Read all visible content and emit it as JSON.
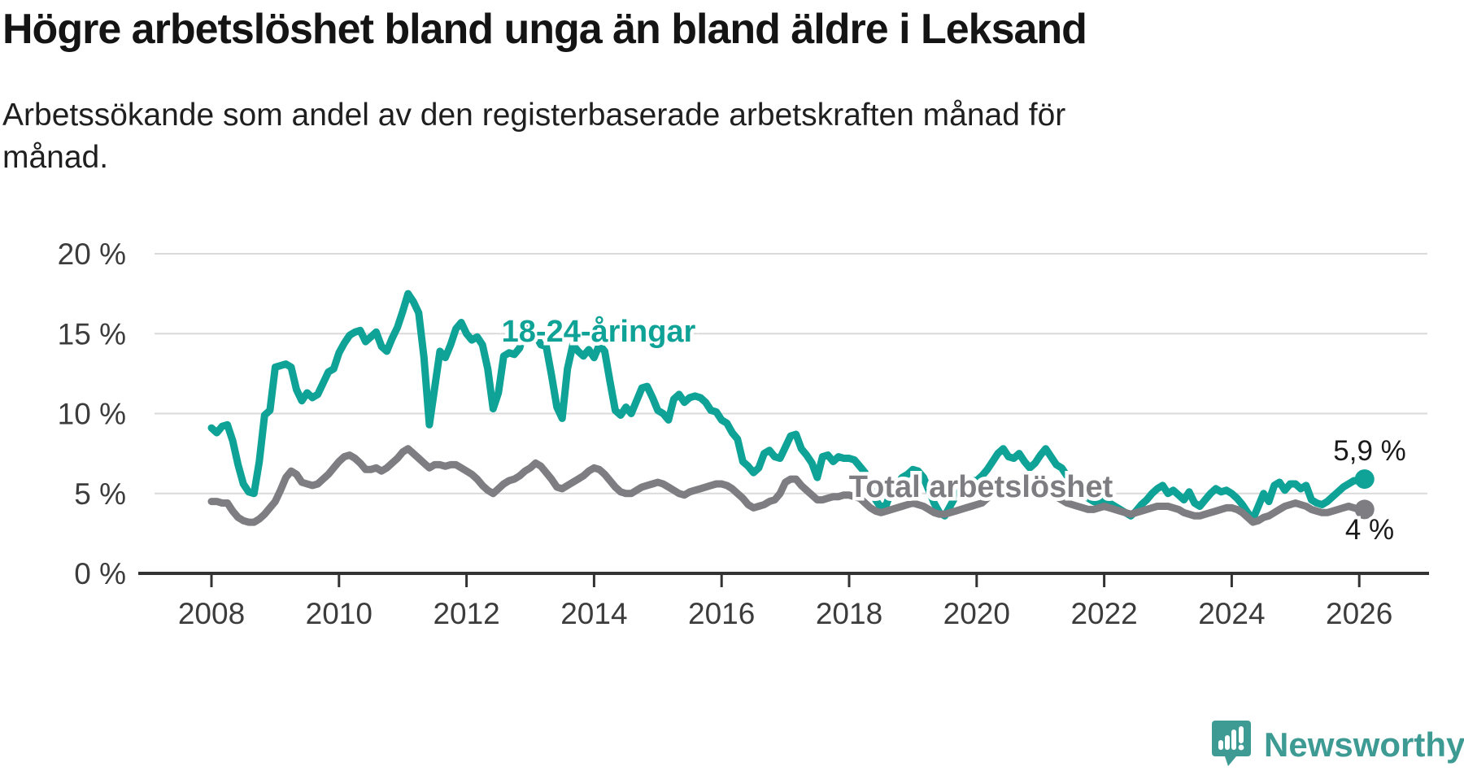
{
  "title": "Högre arbetslöshet bland unga än bland äldre i Leksand",
  "subtitle_line1": "Arbetssökande som andel av den registerbaserade arbetskraften månad för",
  "subtitle_line2": "månad.",
  "branding": {
    "logo_text": "Newsworthy",
    "logo_color": "#3e9b94",
    "logo_icon": "newsworthy-speech-bubble-chart-icon"
  },
  "chart_data": {
    "type": "line",
    "unit": "%",
    "frequency": "monthly",
    "start_year": 2008,
    "start_month": 1,
    "xlabel": "",
    "ylabel": "",
    "ylim": [
      0,
      20.5
    ],
    "grid": true,
    "x_ticks": [
      2008,
      2010,
      2012,
      2014,
      2016,
      2018,
      2020,
      2022,
      2024,
      2026
    ],
    "y_ticks": [
      0,
      5,
      10,
      15,
      20
    ],
    "y_tick_labels": [
      "0 %",
      "5 %",
      "10 %",
      "15 %",
      "20 %"
    ],
    "axis_color": "#333333",
    "grid_color": "#dadada",
    "series": [
      {
        "name": "18-24-åringar",
        "color": "#0fa296",
        "end_label": "5,9 %",
        "end_value": 5.9,
        "values": [
          9.1,
          8.8,
          9.2,
          9.3,
          8.3,
          6.8,
          5.6,
          5.1,
          5.0,
          7.0,
          9.9,
          10.2,
          12.9,
          13.0,
          13.1,
          12.9,
          11.5,
          10.8,
          11.3,
          11.0,
          11.2,
          11.9,
          12.6,
          12.8,
          13.8,
          14.4,
          14.9,
          15.1,
          15.2,
          14.5,
          14.8,
          15.1,
          14.2,
          13.9,
          14.7,
          15.4,
          16.4,
          17.5,
          17.0,
          16.3,
          13.5,
          9.3,
          11.6,
          13.9,
          13.5,
          14.3,
          15.3,
          15.7,
          15.0,
          14.6,
          14.8,
          14.3,
          12.8,
          10.3,
          11.3,
          13.6,
          13.8,
          13.7,
          14.1,
          15.3,
          15.4,
          14.9,
          14.3,
          14.2,
          12.4,
          10.4,
          9.7,
          12.8,
          14.3,
          13.9,
          13.6,
          14.0,
          13.5,
          14.3,
          13.9,
          12.0,
          10.2,
          9.9,
          10.4,
          10.0,
          10.8,
          11.6,
          11.7,
          11.0,
          10.2,
          10.0,
          9.6,
          10.9,
          11.2,
          10.7,
          11.0,
          11.1,
          11.0,
          10.7,
          10.2,
          10.1,
          9.6,
          9.4,
          8.8,
          8.4,
          7.0,
          6.7,
          6.3,
          6.6,
          7.5,
          7.7,
          7.3,
          7.2,
          7.9,
          8.6,
          8.7,
          7.8,
          7.4,
          6.9,
          6.0,
          7.3,
          7.4,
          7.0,
          7.3,
          7.2,
          7.2,
          7.1,
          6.7,
          6.3,
          5.5,
          4.6,
          4.1,
          4.3,
          5.2,
          5.6,
          6.0,
          6.2,
          6.5,
          6.4,
          6.0,
          5.2,
          4.4,
          3.8,
          3.6,
          4.2,
          4.8,
          5.2,
          5.6,
          5.8,
          5.8,
          6.1,
          6.5,
          7.0,
          7.5,
          7.8,
          7.3,
          7.2,
          7.5,
          7.0,
          6.6,
          6.9,
          7.4,
          7.8,
          7.3,
          6.8,
          6.6,
          6.1,
          5.6,
          5.2,
          5.0,
          4.7,
          4.5,
          4.4,
          4.6,
          4.4,
          4.2,
          4.0,
          3.8,
          3.6,
          3.9,
          4.3,
          4.6,
          5.0,
          5.3,
          5.5,
          5.0,
          5.2,
          4.9,
          4.6,
          5.1,
          4.4,
          4.2,
          4.6,
          5.0,
          5.3,
          5.1,
          5.2,
          5.0,
          4.7,
          4.3,
          3.8,
          3.4,
          4.2,
          5.0,
          4.5,
          5.5,
          5.7,
          5.2,
          5.6,
          5.6,
          5.3,
          5.5,
          4.6,
          4.4,
          4.3,
          4.5,
          4.8,
          5.1,
          5.4,
          5.6,
          5.8,
          5.8,
          5.9
        ]
      },
      {
        "name": "Total arbetslöshet",
        "color": "#7d7d82",
        "end_label": "4 %",
        "end_value": 4.0,
        "values": [
          4.5,
          4.5,
          4.4,
          4.4,
          3.9,
          3.5,
          3.3,
          3.2,
          3.2,
          3.4,
          3.7,
          4.1,
          4.5,
          5.2,
          6.0,
          6.4,
          6.2,
          5.7,
          5.6,
          5.5,
          5.6,
          5.9,
          6.2,
          6.6,
          7.0,
          7.3,
          7.4,
          7.2,
          6.9,
          6.5,
          6.5,
          6.6,
          6.4,
          6.6,
          6.9,
          7.2,
          7.6,
          7.8,
          7.5,
          7.2,
          6.9,
          6.6,
          6.8,
          6.8,
          6.7,
          6.8,
          6.8,
          6.6,
          6.4,
          6.2,
          5.9,
          5.5,
          5.2,
          5.0,
          5.3,
          5.6,
          5.8,
          5.9,
          6.1,
          6.4,
          6.6,
          6.9,
          6.7,
          6.3,
          5.9,
          5.4,
          5.3,
          5.5,
          5.7,
          5.9,
          6.1,
          6.4,
          6.6,
          6.5,
          6.2,
          5.8,
          5.4,
          5.1,
          5.0,
          5.0,
          5.2,
          5.4,
          5.5,
          5.6,
          5.7,
          5.6,
          5.4,
          5.2,
          5.0,
          4.9,
          5.1,
          5.2,
          5.3,
          5.4,
          5.5,
          5.6,
          5.6,
          5.5,
          5.3,
          5.0,
          4.7,
          4.3,
          4.1,
          4.2,
          4.3,
          4.5,
          4.6,
          5.0,
          5.7,
          5.9,
          5.9,
          5.5,
          5.2,
          4.9,
          4.6,
          4.6,
          4.7,
          4.8,
          4.8,
          4.9,
          4.9,
          4.8,
          4.7,
          4.4,
          4.1,
          3.9,
          3.8,
          3.9,
          4.0,
          4.1,
          4.2,
          4.3,
          4.4,
          4.3,
          4.2,
          4.0,
          3.8,
          3.7,
          3.7,
          3.8,
          3.9,
          4.0,
          4.1,
          4.2,
          4.3,
          4.4,
          4.7,
          5.0,
          5.2,
          5.3,
          5.2,
          5.2,
          5.1,
          5.0,
          4.9,
          5.0,
          5.1,
          5.1,
          5.0,
          4.8,
          4.6,
          4.4,
          4.3,
          4.2,
          4.1,
          4.0,
          4.0,
          4.1,
          4.2,
          4.1,
          4.0,
          3.9,
          3.8,
          3.7,
          3.8,
          3.9,
          4.0,
          4.1,
          4.2,
          4.2,
          4.2,
          4.1,
          4.0,
          3.8,
          3.7,
          3.6,
          3.6,
          3.7,
          3.8,
          3.9,
          4.0,
          4.1,
          4.1,
          4.0,
          3.8,
          3.5,
          3.2,
          3.3,
          3.5,
          3.6,
          3.8,
          4.0,
          4.2,
          4.3,
          4.4,
          4.3,
          4.2,
          4.0,
          3.9,
          3.8,
          3.8,
          3.9,
          4.0,
          4.1,
          4.2,
          4.1,
          4.0,
          4.0
        ]
      }
    ]
  }
}
